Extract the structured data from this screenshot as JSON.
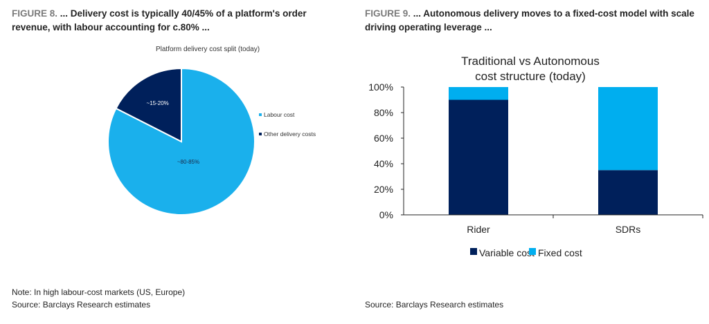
{
  "figure8": {
    "number": "FIGURE 8.",
    "title": "... Delivery cost is typically 40/45% of a platform's order revenue, with labour accounting for c.80% ...",
    "note": "Note: In high labour-cost markets (US, Europe)",
    "source": "Source: Barclays Research estimates"
  },
  "figure9": {
    "number": "FIGURE 9.",
    "title": "...  Autonomous delivery moves to a fixed-cost model with scale driving operating leverage ...",
    "source": "Source: Barclays Research estimates"
  },
  "chart_data": [
    {
      "type": "pie",
      "title": "Platform delivery cost split (today)",
      "slices": [
        {
          "name": "Labour cost",
          "value": 82.5,
          "label": "~80-85%",
          "color": "#1ab0ec"
        },
        {
          "name": "Other delivery costs",
          "value": 17.5,
          "label": "~15-20%",
          "color": "#00205b"
        }
      ],
      "legend": "right"
    },
    {
      "type": "bar",
      "stacked": true,
      "title_lines": [
        "Traditional vs Autonomous",
        "cost structure (today)"
      ],
      "categories": [
        "Rider",
        "SDRs"
      ],
      "series": [
        {
          "name": "Variable cost",
          "values": [
            90,
            35
          ],
          "color": "#00205b"
        },
        {
          "name": "Fixed cost",
          "values": [
            10,
            65
          ],
          "color": "#00aeef"
        }
      ],
      "ylim": [
        0,
        100
      ],
      "yticks": [
        "0%",
        "20%",
        "40%",
        "60%",
        "80%",
        "100%"
      ],
      "grid": false,
      "legend": "bottom"
    }
  ]
}
